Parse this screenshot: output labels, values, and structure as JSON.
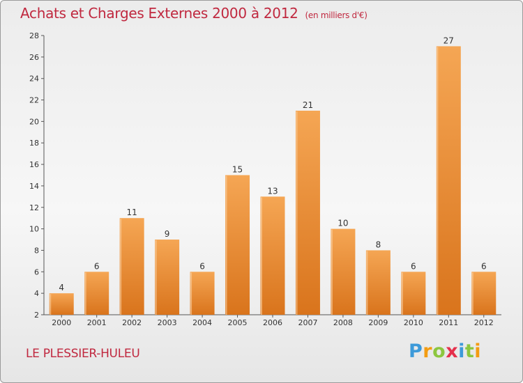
{
  "title": "Achats et Charges Externes 2000 à 2012",
  "unit": "(en milliers d'€)",
  "commune": "LE PLESSIER-HULEU",
  "brand": {
    "letters": [
      "P",
      "r",
      "o",
      "x",
      "i",
      "t",
      "i"
    ],
    "colors": [
      "#3d9ad9",
      "#f39c12",
      "#8cc63f",
      "#e5304c",
      "#3d9ad9",
      "#8cc63f",
      "#f39c12"
    ]
  },
  "colors": {
    "title": "#c0283f",
    "bar_light": "#f5a654",
    "bar_dark": "#d9741c"
  },
  "chart_data": {
    "type": "bar",
    "categories": [
      "2000",
      "2001",
      "2002",
      "2003",
      "2004",
      "2005",
      "2006",
      "2007",
      "2008",
      "2009",
      "2010",
      "2011",
      "2012"
    ],
    "values": [
      4,
      6,
      11,
      9,
      6,
      15,
      13,
      21,
      10,
      8,
      6,
      27,
      6
    ],
    "title": "Achats et Charges Externes 2000 à 2012",
    "xlabel": "",
    "ylabel": "",
    "ylim": [
      2,
      28
    ],
    "yticks": [
      2,
      4,
      6,
      8,
      10,
      12,
      14,
      16,
      18,
      20,
      22,
      24,
      26,
      28
    ],
    "grid": false,
    "legend": "none"
  }
}
